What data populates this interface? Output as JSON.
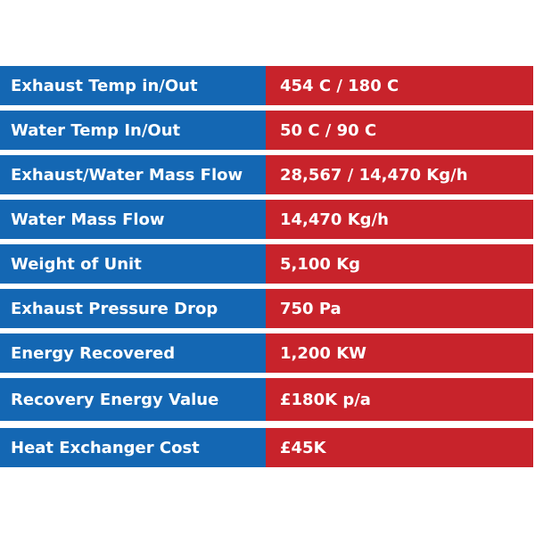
{
  "colors": {
    "label_background": "#1467b3",
    "value_background": "#c8232b",
    "text": "#ffffff"
  },
  "rows": [
    {
      "label": "Exhaust Temp in/Out",
      "value": "454 C / 180 C"
    },
    {
      "label": "Water Temp In/Out",
      "value": "50 C / 90 C"
    },
    {
      "label": "Exhaust/Water Mass Flow",
      "value": "28,567 / 14,470 Kg/h"
    },
    {
      "label": "Water Mass Flow",
      "value": "14,470 Kg/h"
    },
    {
      "label": "Weight of Unit",
      "value": "5,100 Kg"
    },
    {
      "label": "Exhaust Pressure Drop",
      "value": "750 Pa"
    },
    {
      "label": "Energy Recovered",
      "value": "1,200 KW"
    },
    {
      "label": "Recovery Energy Value",
      "value": "£180K p/a"
    },
    {
      "label": "Heat Exchanger Cost",
      "value": "£45K"
    }
  ]
}
